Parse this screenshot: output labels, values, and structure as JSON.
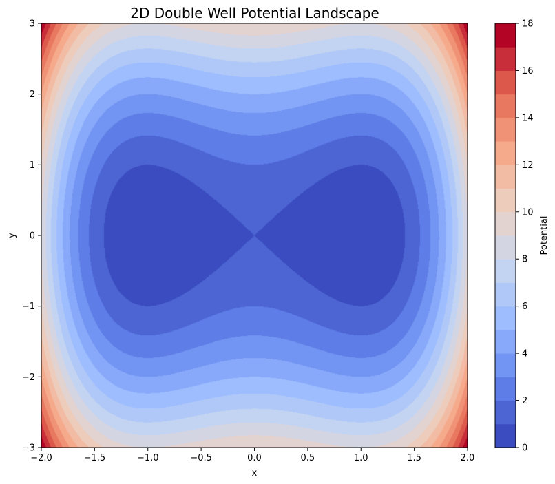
{
  "chart_data": {
    "type": "contourf",
    "title": "2D Double Well Potential Landscape",
    "xlabel": "x",
    "ylabel": "y",
    "xlim": [
      -2.0,
      2.0
    ],
    "ylim": [
      -3,
      3
    ],
    "x_ticks": [
      "−2.0",
      "−1.5",
      "−1.0",
      "−0.5",
      "0.0",
      "0.5",
      "1.0",
      "1.5",
      "2.0"
    ],
    "x_tick_values": [
      -2.0,
      -1.5,
      -1.0,
      -0.5,
      0.0,
      0.5,
      1.0,
      1.5,
      2.0
    ],
    "y_ticks": [
      "−3",
      "−2",
      "−1",
      "0",
      "1",
      "2",
      "3"
    ],
    "y_tick_values": [
      -3,
      -2,
      -1,
      0,
      1,
      2,
      3
    ],
    "potential": "V(x,y) = (x^2 - 1)^2 + y^2",
    "level_step": 1,
    "level_range": [
      0,
      18
    ],
    "colormap": "coolwarm",
    "colormap_stops": [
      "#3b4cc0",
      "#6688ee",
      "#9abbff",
      "#c9d7f0",
      "#edd1c2",
      "#f7a889",
      "#e36a53",
      "#b40426"
    ],
    "colorbar": {
      "label": "Potential",
      "ticks": [
        "0",
        "2",
        "4",
        "6",
        "8",
        "10",
        "12",
        "14",
        "16",
        "18"
      ],
      "tick_values": [
        0,
        2,
        4,
        6,
        8,
        10,
        12,
        14,
        16,
        18
      ]
    }
  }
}
